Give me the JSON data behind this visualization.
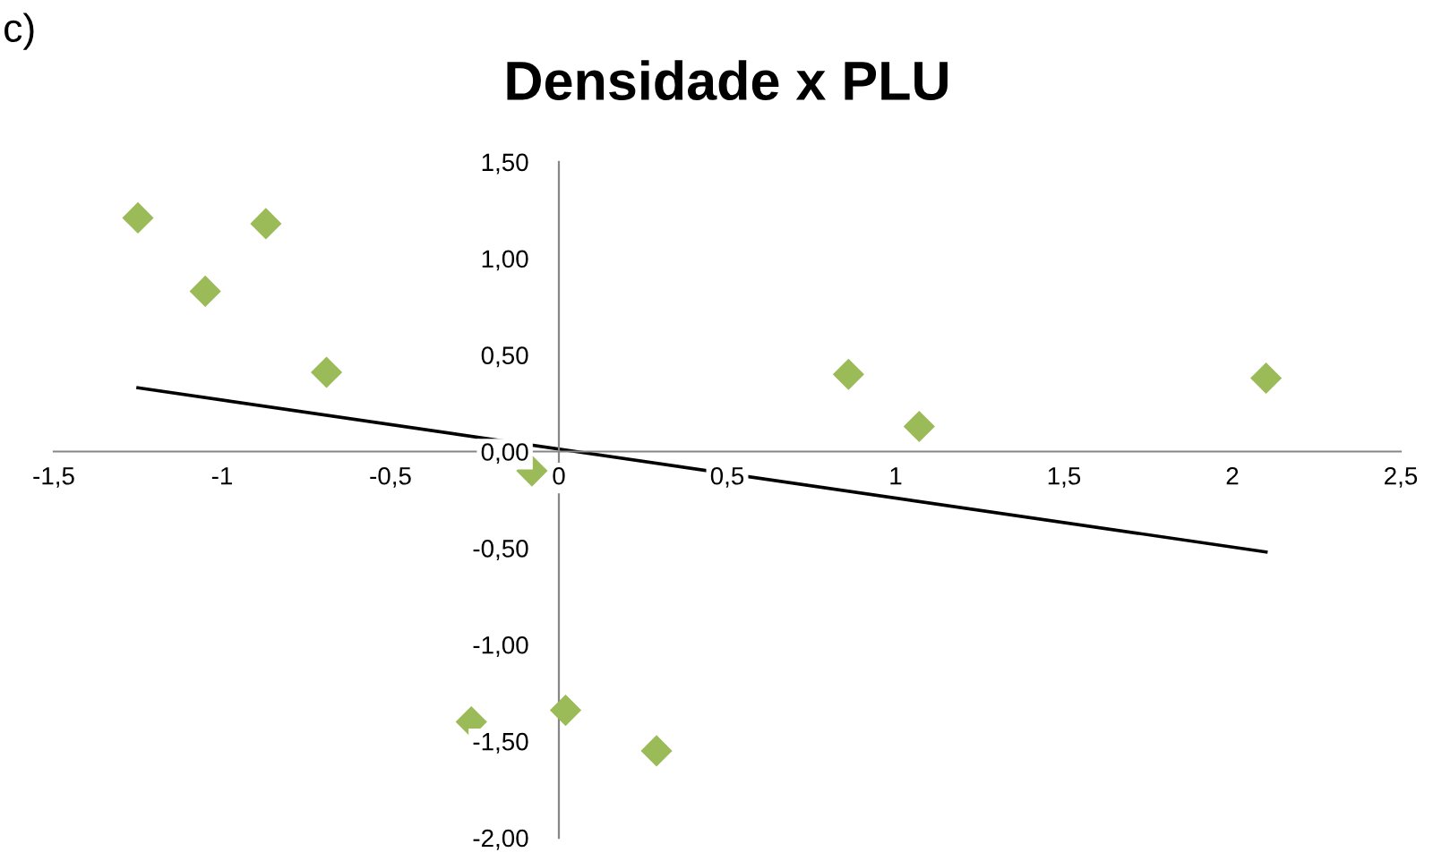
{
  "chart_data": {
    "type": "scatter",
    "title": "Densidade x PLU",
    "annotations": [
      "c)"
    ],
    "marker": "diamond",
    "grid": false,
    "series": [
      {
        "type": "scatter",
        "color": "#9bbb59",
        "x": [
          -1.25,
          -1.05,
          -0.87,
          -0.69,
          -0.08,
          0.86,
          1.07,
          2.1,
          -0.26,
          0.02,
          0.29
        ],
        "values": [
          1.21,
          0.83,
          1.18,
          0.41,
          -0.1,
          0.4,
          0.13,
          0.38,
          -1.4,
          -1.34,
          -1.55
        ]
      },
      {
        "type": "line",
        "color": "#000000",
        "marker": "none",
        "x": [
          -1.25,
          2.1
        ],
        "values": [
          0.33,
          -0.52
        ]
      }
    ],
    "xlim": [
      -1.5,
      2.5
    ],
    "ylim": [
      -2,
      1.5
    ],
    "xticks": [
      {
        "value": -1.5,
        "label": "-1,5"
      },
      -1,
      {
        "value": -0.5,
        "label": "-0,5"
      },
      0,
      {
        "value": 0.5,
        "label": "0,5"
      },
      1,
      {
        "value": 1.5,
        "label": "1,5"
      },
      2,
      {
        "value": 2.5,
        "label": "2,5"
      }
    ],
    "yticks": [
      {
        "value": -2,
        "label": "-2,00"
      },
      {
        "value": -1.5,
        "label": "-1,50"
      },
      {
        "value": -1,
        "label": "-1,00"
      },
      {
        "value": -0.5,
        "label": "-0,50"
      },
      {
        "value": 0,
        "label": "0,00"
      },
      {
        "value": 0.5,
        "label": "0,50"
      },
      {
        "value": 1,
        "label": "1,00"
      },
      {
        "value": 1.5,
        "label": "1,50"
      }
    ]
  }
}
